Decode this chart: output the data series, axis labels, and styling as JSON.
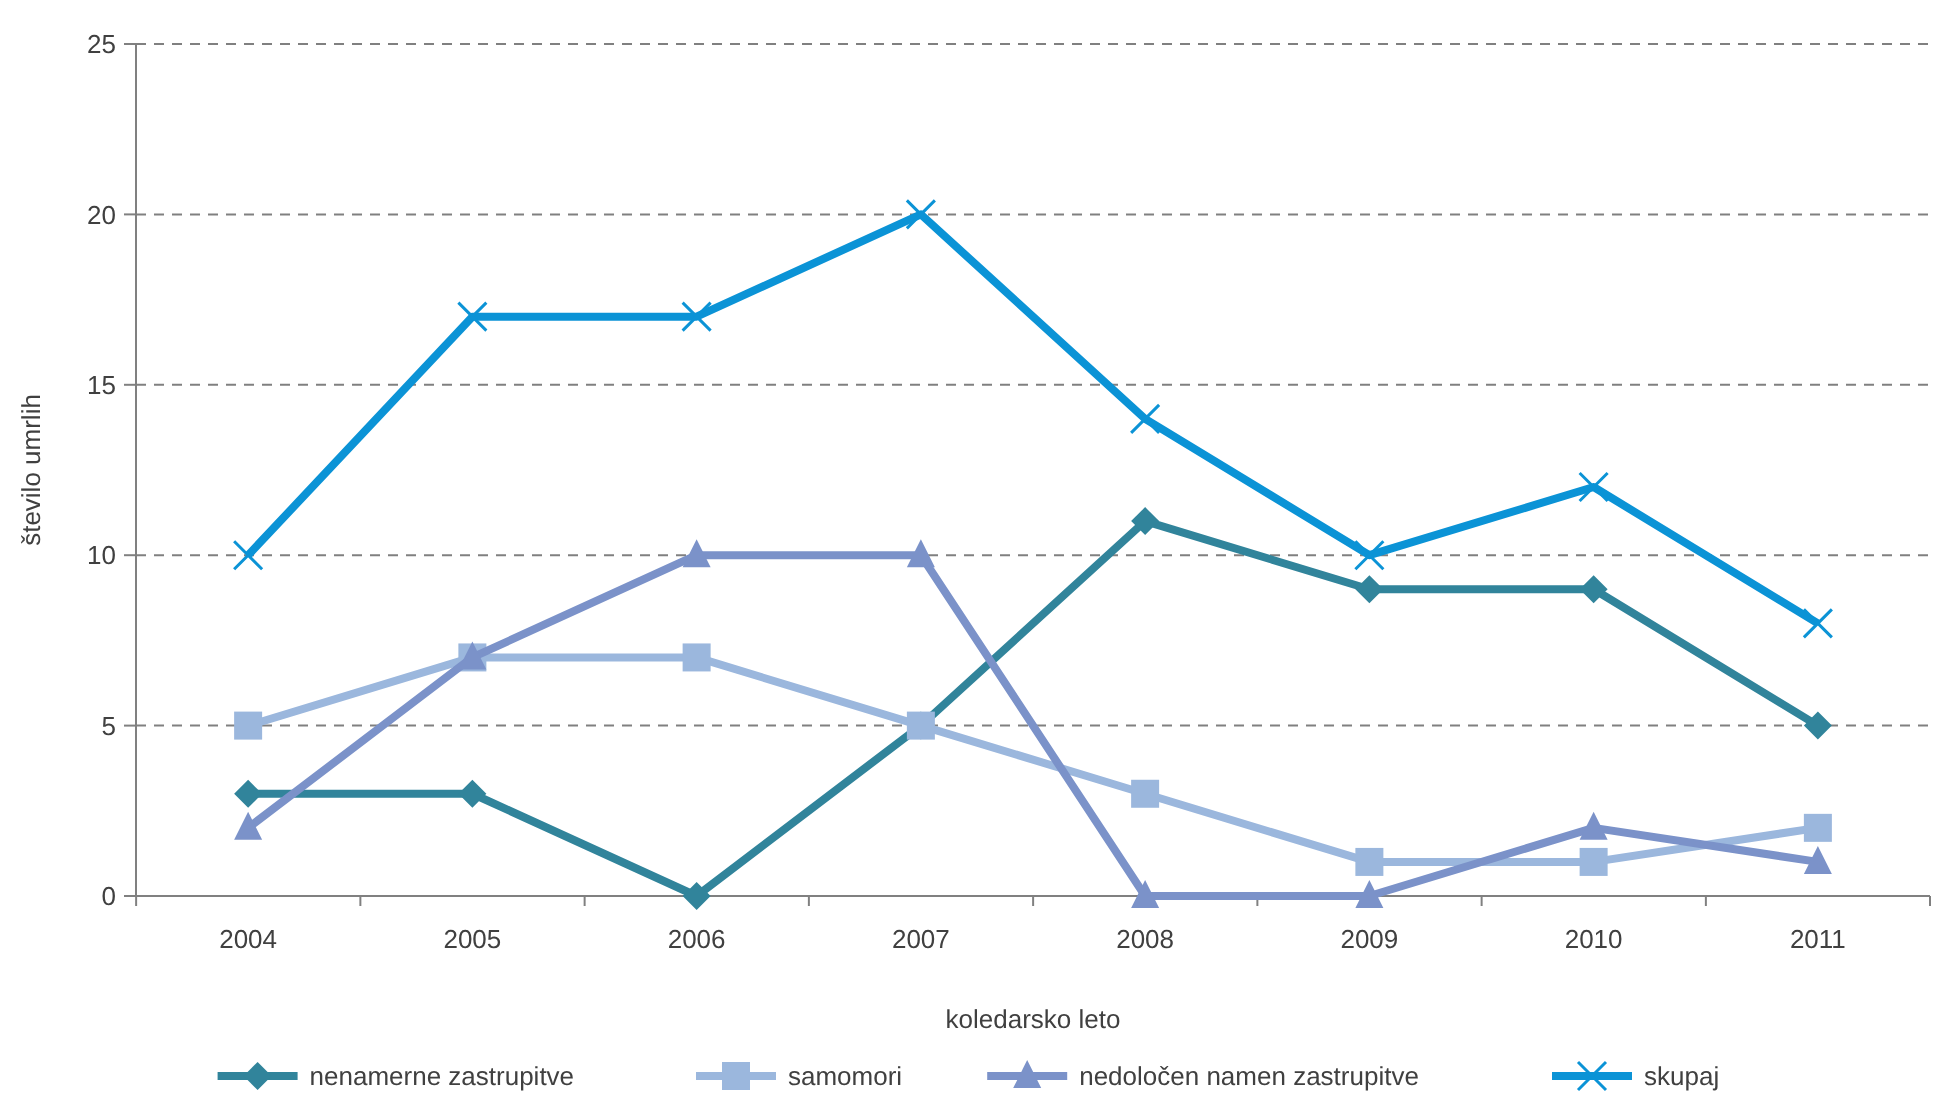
{
  "chart_data": {
    "type": "line",
    "xlabel": "koledarsko leto",
    "ylabel": "število umrlih",
    "categories": [
      "2004",
      "2005",
      "2006",
      "2007",
      "2008",
      "2009",
      "2010",
      "2011"
    ],
    "series": [
      {
        "name": "nenamerne zastrupitve",
        "color": "#31849b",
        "marker": "diamond",
        "values": [
          3,
          3,
          0,
          5,
          11,
          9,
          9,
          5
        ]
      },
      {
        "name": "samomori",
        "color": "#9bb7dd",
        "marker": "square",
        "values": [
          5,
          7,
          7,
          5,
          3,
          1,
          1,
          2
        ]
      },
      {
        "name": "nedoločen namen zastrupitve",
        "color": "#7b92c9",
        "marker": "triangle",
        "values": [
          2,
          7,
          10,
          10,
          0,
          0,
          2,
          1
        ]
      },
      {
        "name": "skupaj",
        "color": "#0b93d6",
        "marker": "cross",
        "values": [
          10,
          17,
          17,
          20,
          14,
          10,
          12,
          8
        ]
      }
    ],
    "ylim": [
      0,
      25
    ],
    "yticks": [
      0,
      5,
      10,
      15,
      20,
      25
    ],
    "grid": "y",
    "legend": "bottom",
    "line_style": "solid"
  }
}
